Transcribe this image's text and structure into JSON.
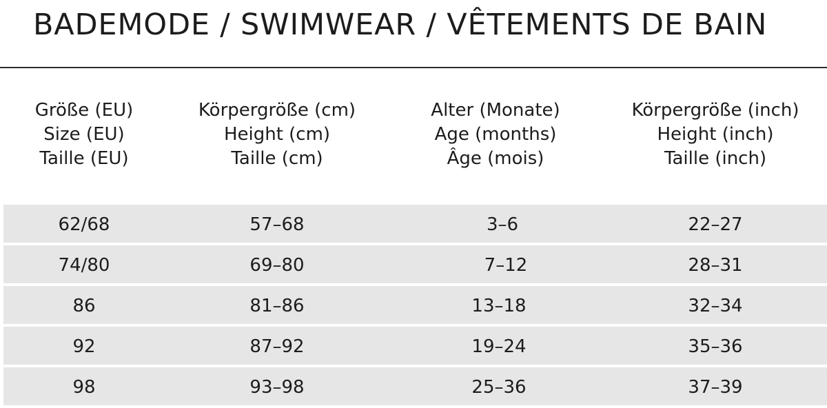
{
  "title": "BADEMODE / SWIMWEAR / VÊTEMENTS DE BAIN",
  "headers": [
    {
      "de": "Größe (EU)",
      "en": "Size (EU)",
      "fr": "Taille (EU)"
    },
    {
      "de": "Körpergröße (cm)",
      "en": "Height (cm)",
      "fr": "Taille (cm)"
    },
    {
      "de": "Alter (Monate)",
      "en": "Age (months)",
      "fr": "Âge (mois)"
    },
    {
      "de": "Körpergröße (inch)",
      "en": "Height (inch)",
      "fr": "Taille (inch)"
    }
  ],
  "rows": [
    [
      "62/68",
      "57–68",
      "3–6",
      "22–27"
    ],
    [
      "74/80",
      "69–80",
      "7–12",
      "28–31"
    ],
    [
      "86",
      "81–86",
      "13–18",
      "32–34"
    ],
    [
      "92",
      "87–92",
      "19–24",
      "35–36"
    ],
    [
      "98",
      "93–98",
      "25–36",
      "37–39"
    ]
  ],
  "colors": {
    "row_background": "#e6e6e6",
    "text": "#1c1c1c",
    "rule": "#2a2a2a"
  }
}
